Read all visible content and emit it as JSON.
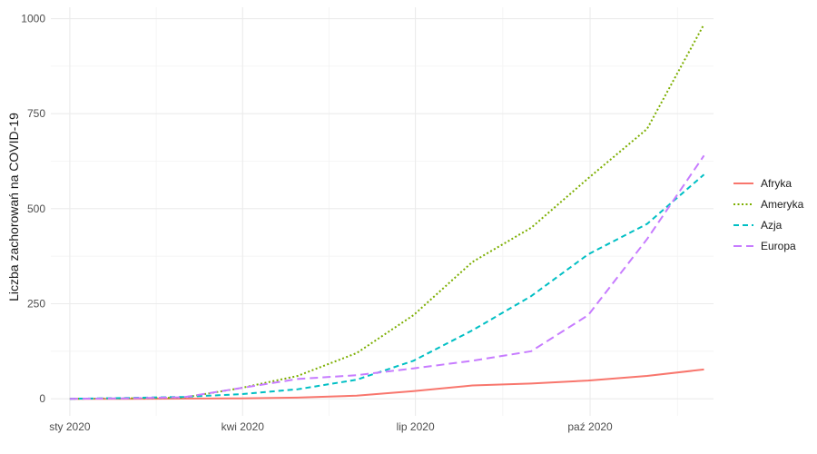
{
  "chart_data": {
    "type": "line",
    "title": "",
    "xlabel": "",
    "ylabel": "Liczba zachorowań na COVID-19",
    "x": [
      "2020-01-01",
      "2020-01-31",
      "2020-03-01",
      "2020-03-31",
      "2020-04-30",
      "2020-05-31",
      "2020-06-30",
      "2020-07-31",
      "2020-08-31",
      "2020-09-30",
      "2020-10-31",
      "2020-11-30"
    ],
    "x_ticks": [
      {
        "date": "2020-01-01",
        "label": "sty 2020"
      },
      {
        "date": "2020-04-01",
        "label": "kwi 2020"
      },
      {
        "date": "2020-07-01",
        "label": "lip 2020"
      },
      {
        "date": "2020-10-01",
        "label": "paź 2020"
      }
    ],
    "xlim": [
      "2019-12-22",
      "2020-12-05"
    ],
    "ylim": [
      -45,
      1030
    ],
    "y_ticks": [
      0,
      250,
      500,
      750,
      1000
    ],
    "grid": true,
    "legend_position": "right",
    "series": [
      {
        "name": "Afryka",
        "color": "#F8766D",
        "dash": "solid",
        "values": [
          0,
          0,
          0.5,
          1,
          3,
          8,
          20,
          35,
          40,
          48,
          60,
          77
        ]
      },
      {
        "name": "Ameryka",
        "color": "#7CAE00",
        "dash": "dotted",
        "values": [
          0,
          1,
          3,
          28,
          60,
          120,
          220,
          360,
          450,
          580,
          710,
          985
        ]
      },
      {
        "name": "Azja",
        "color": "#00BFC4",
        "dash": "dashed",
        "values": [
          0,
          2,
          5,
          12,
          25,
          50,
          100,
          180,
          270,
          380,
          460,
          590
        ]
      },
      {
        "name": "Europa",
        "color": "#C77CFF",
        "dash": "longdash",
        "values": [
          0,
          1,
          4,
          28,
          52,
          62,
          80,
          100,
          125,
          220,
          420,
          640
        ]
      }
    ]
  }
}
